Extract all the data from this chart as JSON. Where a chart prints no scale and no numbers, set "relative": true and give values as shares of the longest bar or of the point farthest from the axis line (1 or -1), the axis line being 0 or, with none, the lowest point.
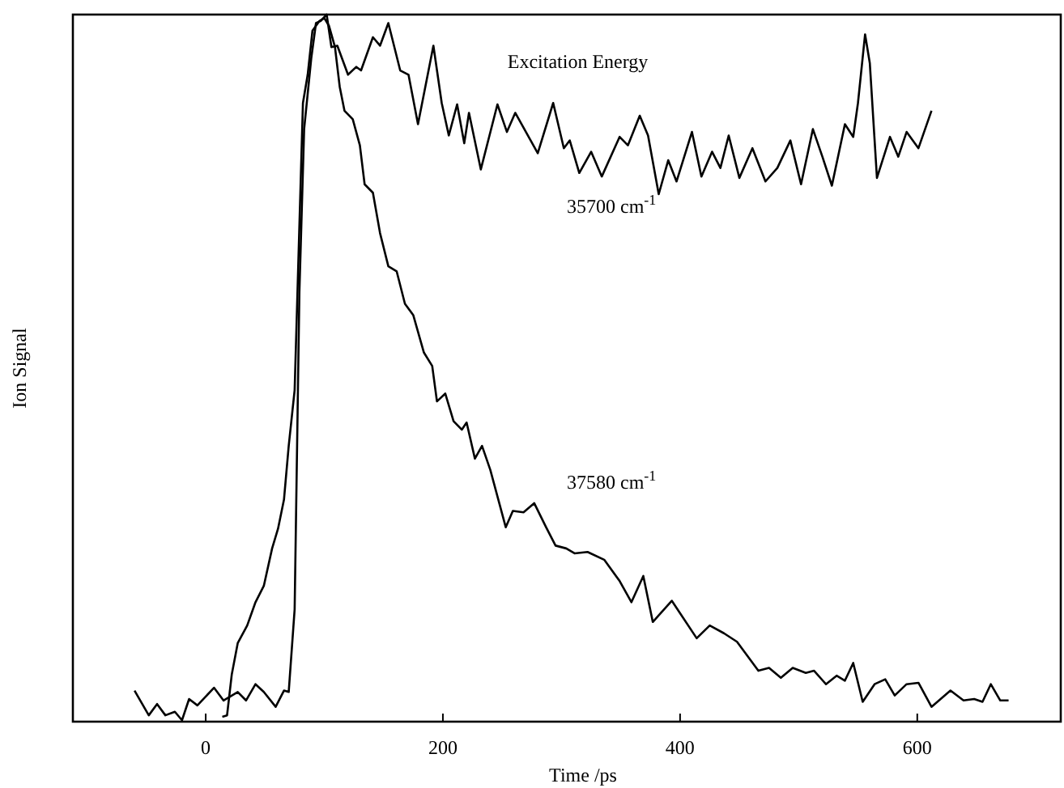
{
  "chart_data": {
    "type": "line",
    "xlabel": "Time /ps",
    "ylabel": "Ion Signal",
    "legend_title": "Excitation Energy",
    "relative": true,
    "xlim": [
      -112,
      721
    ],
    "xticks": [
      0,
      200,
      400,
      600
    ],
    "grid": false,
    "marker": "none",
    "line_style": "solid",
    "series": [
      {
        "name": "35700 cm$^{-1}$",
        "color": "#000000",
        "x": [
          -60,
          -48,
          -41,
          -34,
          -26,
          -20,
          -14,
          -7,
          7,
          15,
          27,
          34,
          42,
          49,
          59,
          66,
          70,
          75,
          79,
          83,
          89,
          93,
          97,
          102,
          106,
          111,
          120,
          127,
          131,
          141,
          147,
          154,
          164,
          171,
          179,
          192,
          199,
          205,
          212,
          218,
          222,
          232,
          246,
          254,
          261,
          280,
          293,
          302,
          307,
          315,
          325,
          334,
          349,
          356,
          366,
          373,
          382,
          390,
          397,
          410,
          418,
          427,
          434,
          441,
          450,
          461,
          472,
          482,
          493,
          502,
          512,
          520,
          528,
          539,
          546,
          550,
          556,
          560,
          566,
          577,
          584,
          591,
          601,
          612
        ],
        "values": [
          0.044,
          0.009,
          0.025,
          0.009,
          0.014,
          0.002,
          0.032,
          0.023,
          0.048,
          0.03,
          0.042,
          0.03,
          0.053,
          0.042,
          0.021,
          0.044,
          0.042,
          0.159,
          0.607,
          0.838,
          0.938,
          0.988,
          0.991,
          1.0,
          0.954,
          0.956,
          0.915,
          0.926,
          0.921,
          0.968,
          0.956,
          0.988,
          0.921,
          0.915,
          0.845,
          0.956,
          0.875,
          0.829,
          0.873,
          0.818,
          0.861,
          0.781,
          0.873,
          0.834,
          0.861,
          0.804,
          0.875,
          0.811,
          0.822,
          0.776,
          0.806,
          0.771,
          0.827,
          0.815,
          0.857,
          0.829,
          0.746,
          0.794,
          0.764,
          0.834,
          0.771,
          0.806,
          0.783,
          0.829,
          0.769,
          0.811,
          0.764,
          0.783,
          0.822,
          0.76,
          0.838,
          0.799,
          0.758,
          0.845,
          0.827,
          0.875,
          0.972,
          0.931,
          0.769,
          0.827,
          0.799,
          0.834,
          0.811,
          0.864
        ]
      },
      {
        "name": "37580 cm$^{-1}$",
        "color": "#000000",
        "x": [
          14,
          18,
          22,
          27,
          35,
          42,
          49,
          56,
          61,
          66,
          70,
          75,
          82,
          86,
          90,
          96,
          100,
          104,
          109,
          113,
          117,
          124,
          130,
          134,
          141,
          147,
          154,
          161,
          168,
          175,
          184,
          191,
          195,
          202,
          209,
          216,
          220,
          227,
          233,
          240,
          253,
          259,
          268,
          277,
          287,
          295,
          304,
          311,
          322,
          336,
          349,
          359,
          369,
          377,
          393,
          414,
          425,
          437,
          448,
          466,
          475,
          485,
          495,
          506,
          513,
          523,
          532,
          539,
          546,
          554,
          564,
          573,
          581,
          591,
          601,
          612,
          628,
          639,
          648,
          655,
          662,
          670,
          677
        ],
        "values": [
          0.007,
          0.009,
          0.067,
          0.111,
          0.136,
          0.169,
          0.192,
          0.245,
          0.273,
          0.314,
          0.39,
          0.469,
          0.875,
          0.915,
          0.977,
          0.991,
          0.995,
          0.984,
          0.954,
          0.898,
          0.864,
          0.852,
          0.815,
          0.76,
          0.748,
          0.691,
          0.644,
          0.637,
          0.591,
          0.575,
          0.522,
          0.503,
          0.453,
          0.464,
          0.425,
          0.413,
          0.423,
          0.372,
          0.39,
          0.356,
          0.275,
          0.298,
          0.296,
          0.309,
          0.275,
          0.249,
          0.245,
          0.238,
          0.24,
          0.229,
          0.199,
          0.169,
          0.206,
          0.141,
          0.171,
          0.118,
          0.136,
          0.125,
          0.113,
          0.072,
          0.076,
          0.062,
          0.076,
          0.069,
          0.072,
          0.053,
          0.065,
          0.058,
          0.083,
          0.028,
          0.053,
          0.06,
          0.037,
          0.053,
          0.055,
          0.021,
          0.044,
          0.03,
          0.032,
          0.028,
          0.053,
          0.03,
          0.03
        ]
      }
    ]
  }
}
